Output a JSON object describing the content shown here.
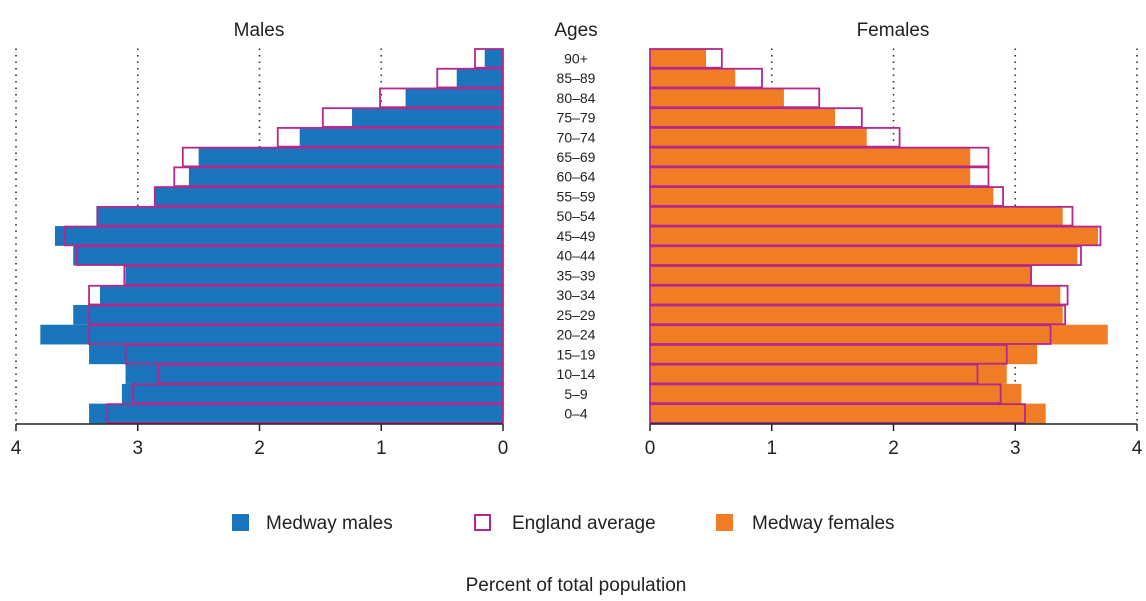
{
  "chart_data": {
    "type": "bar",
    "subtype": "population-pyramid",
    "xlabel": "Percent of total population",
    "center_label": "Ages",
    "panels": {
      "left_title": "Males",
      "right_title": "Females"
    },
    "categories": [
      "90+",
      "85–89",
      "80–84",
      "75–79",
      "70–74",
      "65–69",
      "60–64",
      "55–59",
      "50–54",
      "45–49",
      "40–44",
      "35–39",
      "30–34",
      "25–29",
      "20–24",
      "15–19",
      "10–14",
      "5–9",
      "0–4"
    ],
    "series": [
      {
        "name": "Medway males",
        "side": "left",
        "style": "filled",
        "color": "#1a75bc",
        "values": [
          0.15,
          0.38,
          0.8,
          1.24,
          1.67,
          2.5,
          2.58,
          2.86,
          3.34,
          3.68,
          3.53,
          3.1,
          3.31,
          3.53,
          3.8,
          3.4,
          3.1,
          3.13,
          3.4
        ]
      },
      {
        "name": "England average",
        "side": "left",
        "style": "outline",
        "color": "#b4288c",
        "values": [
          0.23,
          0.54,
          1.01,
          1.48,
          1.85,
          2.63,
          2.7,
          2.86,
          3.33,
          3.6,
          3.5,
          3.11,
          3.4,
          3.4,
          3.4,
          3.1,
          2.83,
          3.04,
          3.25
        ]
      },
      {
        "name": "Medway females",
        "side": "right",
        "style": "filled",
        "color": "#f07d26",
        "values": [
          0.46,
          0.7,
          1.1,
          1.52,
          1.78,
          2.63,
          2.63,
          2.82,
          3.39,
          3.68,
          3.51,
          3.13,
          3.37,
          3.39,
          3.76,
          3.18,
          2.93,
          3.05,
          3.25
        ]
      },
      {
        "name": "England average",
        "side": "right",
        "style": "outline",
        "color": "#b4288c",
        "values": [
          0.59,
          0.92,
          1.39,
          1.74,
          2.05,
          2.78,
          2.78,
          2.9,
          3.47,
          3.7,
          3.54,
          3.13,
          3.43,
          3.41,
          3.29,
          2.93,
          2.69,
          2.88,
          3.08
        ]
      }
    ],
    "xlim": [
      0,
      4
    ],
    "xticks": [
      "0",
      "1",
      "2",
      "3",
      "4"
    ],
    "grid": "dotted vertical",
    "legend": {
      "position": "bottom",
      "entries": [
        {
          "label": "Medway males",
          "style": "filled",
          "color": "#1a75bc"
        },
        {
          "label": "England average",
          "style": "outline",
          "color": "#b4288c"
        },
        {
          "label": "Medway females",
          "style": "filled",
          "color": "#f07d26"
        }
      ]
    }
  }
}
